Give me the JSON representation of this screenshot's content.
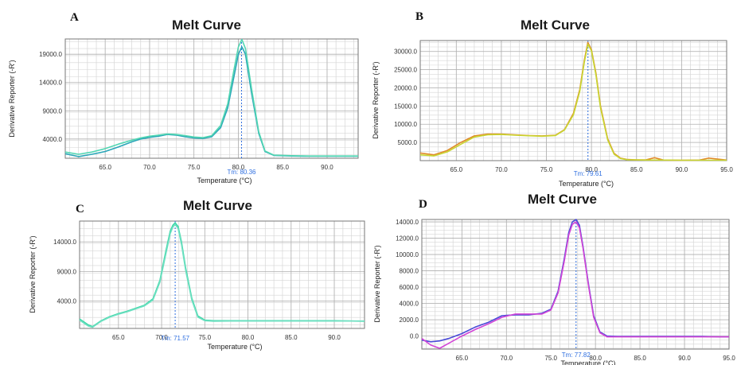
{
  "chart_data": [
    {
      "panel": "A",
      "type": "line",
      "title": "Melt Curve",
      "xlabel": "Temperature (°C)",
      "ylabel": "Derivative Reporter (-R')",
      "xlim": [
        60.5,
        93.5
      ],
      "ylim": [
        600,
        21700
      ],
      "xticks": [
        65,
        70,
        75,
        80,
        85,
        90
      ],
      "xtick_labels": [
        "65.0",
        "70.0",
        "75.0",
        "80.0",
        "85.0",
        "90.0"
      ],
      "yticks": [
        4000,
        9000,
        14000,
        19000
      ],
      "ytick_labels": [
        "4000.0",
        "9000.0",
        "14000.0",
        "19000.0"
      ],
      "grid": true,
      "tm": 80.36,
      "tm_label": "Tm: 80.36",
      "series": [
        {
          "color": "#2aa6b8",
          "x": [
            60.5,
            62,
            63.5,
            65,
            66.5,
            68,
            69,
            70,
            71,
            72,
            73,
            74,
            75,
            76,
            77,
            78,
            78.8,
            79.5,
            80,
            80.4,
            80.8,
            81.5,
            82.3,
            83,
            84,
            86,
            88,
            90,
            92,
            93.5
          ],
          "y": [
            1400,
            900,
            1300,
            1800,
            2600,
            3500,
            4000,
            4300,
            4500,
            4800,
            4700,
            4400,
            4200,
            4100,
            4400,
            6000,
            9500,
            15000,
            19000,
            20300,
            19000,
            12000,
            5000,
            1800,
            1100,
            1000,
            950,
            950,
            950,
            950
          ]
        },
        {
          "color": "#52d6b2",
          "x": [
            60.5,
            62,
            63.5,
            65,
            66.5,
            68,
            69,
            70,
            71,
            72,
            73,
            74,
            75,
            76,
            77,
            78,
            78.8,
            79.5,
            80,
            80.4,
            80.8,
            81.5,
            82.3,
            83,
            84,
            86,
            88,
            90,
            92,
            93.5
          ],
          "y": [
            1700,
            1300,
            1700,
            2300,
            3100,
            3800,
            4200,
            4500,
            4700,
            4900,
            4800,
            4600,
            4350,
            4250,
            4600,
            6400,
            10200,
            16200,
            20300,
            21600,
            20000,
            12800,
            5300,
            1900,
            1150,
            1050,
            1000,
            1000,
            1000,
            1000
          ]
        }
      ]
    },
    {
      "panel": "B",
      "type": "line",
      "title": "Melt Curve",
      "xlabel": "Temperature (°C)",
      "ylabel": "Derivative Reporter (-R')",
      "xlim": [
        61,
        95
      ],
      "ylim": [
        0,
        33000
      ],
      "xticks": [
        65,
        70,
        75,
        80,
        85,
        90,
        95
      ],
      "xtick_labels": [
        "65.0",
        "70.0",
        "75.0",
        "80.0",
        "85.0",
        "90.0",
        "95.0"
      ],
      "yticks": [
        5000,
        10000,
        15000,
        20000,
        25000,
        30000
      ],
      "ytick_labels": [
        "5000.0",
        "10000.0",
        "15000.0",
        "20000.0",
        "25000.0",
        "30000.0"
      ],
      "grid": true,
      "tm": 79.61,
      "tm_label": "Tm: 79.61",
      "series": [
        {
          "color": "#e08a2a",
          "x": [
            61,
            62.5,
            64,
            65.5,
            67,
            68.5,
            70,
            71.5,
            73,
            74.5,
            76,
            77,
            78,
            78.7,
            79.2,
            79.6,
            80,
            80.5,
            81,
            81.8,
            82.5,
            83.2,
            84,
            85,
            86,
            87,
            88,
            90,
            92,
            93,
            95
          ],
          "y": [
            2100,
            1600,
            2800,
            5000,
            6800,
            7300,
            7300,
            7100,
            6900,
            6800,
            7000,
            8500,
            13000,
            19500,
            27500,
            32500,
            30500,
            24000,
            15000,
            6000,
            2000,
            700,
            300,
            200,
            200,
            800,
            150,
            100,
            150,
            700,
            150
          ]
        },
        {
          "color": "#c8d632",
          "x": [
            61,
            62.5,
            64,
            65.5,
            67,
            68.5,
            70,
            71.5,
            73,
            74.5,
            76,
            77,
            78,
            78.7,
            79.2,
            79.6,
            80,
            80.5,
            81,
            81.8,
            82.5,
            83.2,
            84,
            85,
            86,
            87,
            88,
            90,
            92,
            93,
            95
          ],
          "y": [
            1600,
            1300,
            2400,
            4500,
            6500,
            7100,
            7200,
            7000,
            6850,
            6700,
            6900,
            8400,
            12600,
            19000,
            27000,
            32000,
            30200,
            23500,
            14500,
            5700,
            1800,
            600,
            250,
            200,
            150,
            150,
            150,
            100,
            100,
            100,
            100
          ]
        }
      ]
    },
    {
      "panel": "C",
      "type": "line",
      "title": "Melt Curve",
      "xlabel": "Temperature (°C)",
      "ylabel": "Derivative Reporter (-R')",
      "xlim": [
        60.5,
        93.5
      ],
      "ylim": [
        -600,
        17500
      ],
      "xticks": [
        65,
        70,
        75,
        80,
        85,
        90
      ],
      "xtick_labels": [
        "65.0",
        "70.0",
        "75.0",
        "80.0",
        "85.0",
        "90.0"
      ],
      "yticks": [
        4000,
        9000,
        14000
      ],
      "ytick_labels": [
        "4000.0",
        "9000.0",
        "14000.0"
      ],
      "grid": true,
      "tm": 71.57,
      "tm_label": "Tm: 71.57",
      "series": [
        {
          "color": "#3bd6a6",
          "x": [
            60.5,
            61,
            61.5,
            62,
            63,
            64,
            65,
            66,
            67,
            68,
            69,
            69.8,
            70.5,
            71,
            71.3,
            71.57,
            71.9,
            72.3,
            72.8,
            73.5,
            74.2,
            75,
            76,
            78,
            80,
            82,
            84,
            86,
            88,
            90,
            92,
            93.5
          ],
          "y": [
            1000,
            500,
            0,
            -300,
            700,
            1400,
            1900,
            2300,
            2800,
            3300,
            4400,
            7500,
            12500,
            15800,
            16800,
            17200,
            16600,
            14000,
            9500,
            4500,
            1500,
            800,
            700,
            700,
            700,
            700,
            700,
            700,
            700,
            700,
            650,
            600
          ]
        },
        {
          "color": "#6fe0c2",
          "x": [
            60.5,
            61,
            61.5,
            62,
            63,
            64,
            65,
            66,
            67,
            68,
            69,
            69.8,
            70.5,
            71,
            71.3,
            71.57,
            71.9,
            72.3,
            72.8,
            73.5,
            74.2,
            75,
            76,
            78,
            80,
            82,
            84,
            86,
            88,
            90,
            92,
            93.5
          ],
          "y": [
            800,
            300,
            -200,
            -400,
            600,
            1300,
            1800,
            2200,
            2700,
            3200,
            4200,
            7200,
            12000,
            15400,
            16500,
            16900,
            16300,
            13600,
            9100,
            4200,
            1300,
            700,
            600,
            650,
            650,
            650,
            650,
            650,
            650,
            650,
            650,
            650
          ]
        }
      ]
    },
    {
      "panel": "D",
      "type": "line",
      "title": "Melt Curve",
      "xlabel": "Temperature (°C)",
      "ylabel": "Derivative Reporter (-R')",
      "xlim": [
        60.5,
        95
      ],
      "ylim": [
        -1600,
        14300
      ],
      "xticks": [
        65,
        70,
        75,
        80,
        85,
        90,
        95
      ],
      "xtick_labels": [
        "65.0",
        "70.0",
        "75.0",
        "80.0",
        "85.0",
        "90.0",
        "95.0"
      ],
      "yticks": [
        0,
        2000,
        4000,
        6000,
        8000,
        10000,
        12000,
        14000
      ],
      "ytick_labels": [
        "0.0",
        "2000.0",
        "4000.0",
        "6000.0",
        "8000.0",
        "10000.0",
        "12000.0",
        "14000.0"
      ],
      "grid": true,
      "tm": 77.82,
      "tm_label": "Tm: 77.82",
      "series": [
        {
          "color": "#4a4ad8",
          "x": [
            60.5,
            61.5,
            62.5,
            63.5,
            65,
            66.5,
            68,
            69.5,
            71,
            72.5,
            74,
            75,
            75.8,
            76.5,
            77,
            77.4,
            77.82,
            78.2,
            78.6,
            79.2,
            79.8,
            80.5,
            81.3,
            82.5,
            84,
            86,
            88,
            90,
            92,
            94,
            95
          ],
          "y": [
            -500,
            -700,
            -600,
            -300,
            300,
            1100,
            1700,
            2500,
            2600,
            2600,
            2800,
            3300,
            5500,
            9500,
            12700,
            14000,
            14300,
            13600,
            11000,
            6500,
            2500,
            500,
            0,
            -50,
            -50,
            -50,
            -50,
            -50,
            -50,
            -100,
            -100
          ]
        },
        {
          "color": "#d246d6",
          "x": [
            60.5,
            61.5,
            62.5,
            63.5,
            65,
            66.5,
            68,
            69.5,
            71,
            72.5,
            74,
            75,
            75.8,
            76.5,
            77,
            77.4,
            77.82,
            78.2,
            78.6,
            79.2,
            79.8,
            80.5,
            81.3,
            82.5,
            84,
            86,
            88,
            90,
            92,
            94,
            95
          ],
          "y": [
            -300,
            -1100,
            -1500,
            -900,
            0,
            800,
            1500,
            2300,
            2700,
            2700,
            2700,
            3200,
            5300,
            9200,
            12400,
            13700,
            14000,
            13300,
            10800,
            6300,
            2300,
            400,
            -100,
            -100,
            -100,
            -100,
            -100,
            -100,
            -100,
            -100,
            -100
          ]
        }
      ]
    }
  ]
}
